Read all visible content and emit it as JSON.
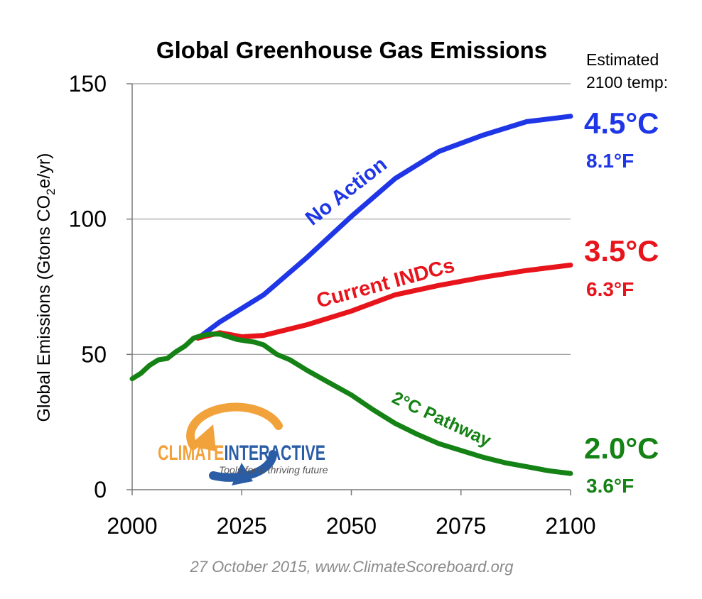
{
  "chart_data": {
    "type": "line",
    "title": "Global Greenhouse Gas Emissions",
    "ylabel_prefix": "Global Emissions (Gtons CO",
    "ylabel_sub": "2",
    "ylabel_suffix": "e/yr)",
    "xlabel": "",
    "xlim": [
      2000,
      2100
    ],
    "ylim": [
      0,
      150
    ],
    "xticks": [
      2000,
      2025,
      2050,
      2075,
      2100
    ],
    "yticks": [
      0,
      50,
      100,
      150
    ],
    "grid": "horizontal",
    "legend": "inline-labels",
    "temp_header_line1": "Estimated",
    "temp_header_line2": "2100 temp:",
    "series": [
      {
        "name": "No Action",
        "color": "#1f36e6",
        "temp_c": "4.5°C",
        "temp_f": "8.1°F",
        "x": [
          2015,
          2020,
          2025,
          2030,
          2040,
          2050,
          2060,
          2070,
          2080,
          2090,
          2100
        ],
        "y": [
          56,
          62,
          67,
          72,
          86,
          101,
          115,
          125,
          131,
          136,
          138
        ]
      },
      {
        "name": "Current INDCs",
        "color": "#e8141c",
        "temp_c": "3.5°C",
        "temp_f": "6.3°F",
        "x": [
          2015,
          2020,
          2025,
          2030,
          2040,
          2050,
          2060,
          2070,
          2080,
          2090,
          2100
        ],
        "y": [
          56,
          58,
          56.5,
          57,
          61,
          66,
          72,
          75.5,
          78.5,
          81,
          83
        ]
      },
      {
        "name": "2°C Pathway",
        "color": "#148214",
        "temp_c": "2.0°C",
        "temp_f": "3.6°F",
        "x": [
          2000,
          2002,
          2004,
          2006,
          2008,
          2010,
          2012,
          2014,
          2016,
          2018,
          2020,
          2022,
          2024,
          2026,
          2028,
          2030,
          2033,
          2036,
          2040,
          2045,
          2050,
          2055,
          2060,
          2065,
          2070,
          2075,
          2080,
          2085,
          2090,
          2095,
          2100
        ],
        "y": [
          41,
          43,
          46,
          48,
          48.5,
          51,
          53,
          56,
          57,
          57.5,
          57.5,
          56.5,
          55.5,
          55,
          54.5,
          53.5,
          50,
          48,
          44,
          39.5,
          35,
          29.5,
          24.5,
          20.5,
          17,
          14.5,
          12,
          10,
          8.5,
          7,
          6
        ]
      }
    ]
  },
  "logo": {
    "name_part1": "CLIMATE",
    "name_part2": "INTERACTIVE",
    "tagline": "Tools for a thriving future",
    "color_orange": "#f2a23a",
    "color_blue": "#2b5da6"
  },
  "footer": {
    "caption": "27 October 2015, www.ClimateScoreboard.org"
  }
}
